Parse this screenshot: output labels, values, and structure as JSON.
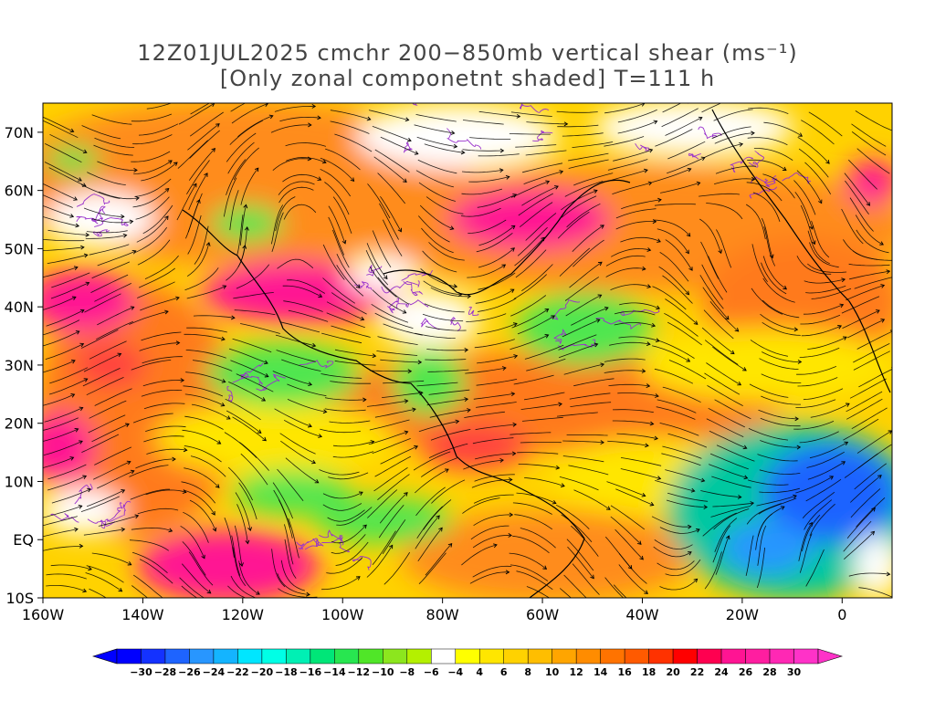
{
  "title": {
    "line1": "12Z01JUL2025 cmchr 200−850mb vertical shear (ms⁻¹)",
    "line2": "[Only zonal componetnt shaded] T=111 h"
  },
  "map": {
    "lon_range": [
      -160,
      10
    ],
    "lat_range": [
      -10,
      75
    ],
    "lat_ticks": [
      {
        "value": 70,
        "label": "70N"
      },
      {
        "value": 60,
        "label": "60N"
      },
      {
        "value": 50,
        "label": "50N"
      },
      {
        "value": 40,
        "label": "40N"
      },
      {
        "value": 30,
        "label": "30N"
      },
      {
        "value": 20,
        "label": "20N"
      },
      {
        "value": 10,
        "label": "10N"
      },
      {
        "value": 0,
        "label": "EQ"
      },
      {
        "value": -10,
        "label": "10S"
      }
    ],
    "lon_ticks": [
      {
        "value": -160,
        "label": "160W"
      },
      {
        "value": -140,
        "label": "140W"
      },
      {
        "value": -120,
        "label": "120W"
      },
      {
        "value": -100,
        "label": "100W"
      },
      {
        "value": -80,
        "label": "80W"
      },
      {
        "value": -60,
        "label": "60W"
      },
      {
        "value": -40,
        "label": "40W"
      },
      {
        "value": -20,
        "label": "20W"
      },
      {
        "value": 0,
        "label": "0"
      }
    ],
    "colors": {
      "magenta": "#ff1493",
      "red_orange": "#ff5a1e",
      "orange": "#ff8c1e",
      "yellow": "#ffe600",
      "green": "#50e650",
      "teal": "#00c8a0",
      "blue": "#1e64ff",
      "streamline": "#000000",
      "contour": "#9932cc"
    }
  },
  "colorbar": {
    "labels": [
      "−30",
      "−28",
      "−26",
      "−24",
      "−22",
      "−20",
      "−18",
      "−16",
      "−14",
      "−12",
      "−10",
      "−8",
      "−6",
      "−4",
      "4",
      "6",
      "8",
      "10",
      "12",
      "14",
      "16",
      "18",
      "20",
      "22",
      "24",
      "26",
      "28",
      "30"
    ],
    "colors": [
      "#0000ff",
      "#1432ff",
      "#1e64ff",
      "#2896ff",
      "#14b4ff",
      "#00e6ff",
      "#00ffe6",
      "#00f0b4",
      "#00e678",
      "#28e650",
      "#50e628",
      "#8ce61e",
      "#b4f000",
      "#ffffff",
      "#ffff00",
      "#ffe600",
      "#ffd200",
      "#ffbe00",
      "#ffa500",
      "#ff8c00",
      "#ff7300",
      "#ff5a00",
      "#ff3200",
      "#ff0000",
      "#ff0050",
      "#ff1493",
      "#ff1ea0",
      "#ff28b4",
      "#ff32c8"
    ]
  }
}
